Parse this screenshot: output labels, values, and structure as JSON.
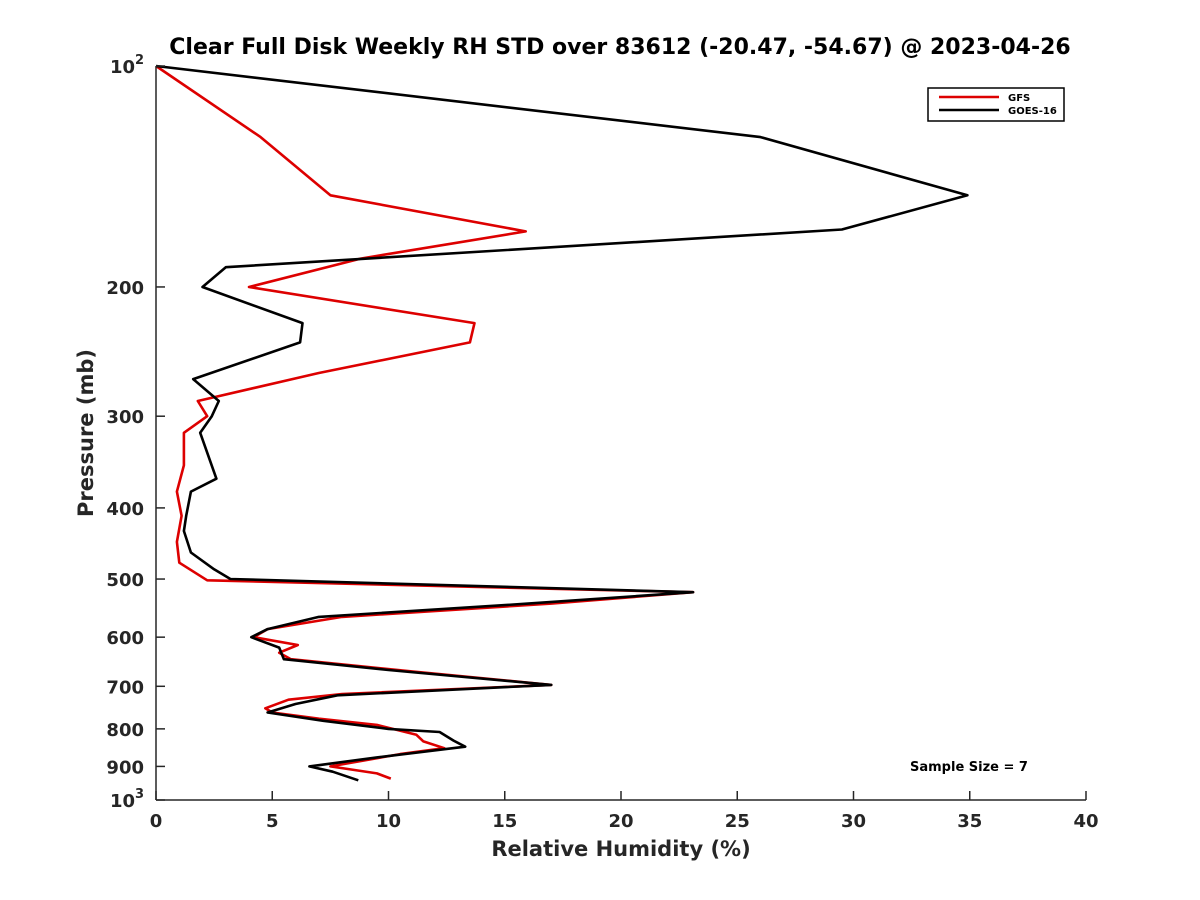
{
  "chart_data": {
    "type": "line",
    "title": "Clear Full Disk Weekly RH STD over 83612 (-20.47, -54.67) @ 2023-04-26",
    "xlabel": "Relative Humidity (%)",
    "ylabel": "Pressure (mb)",
    "xlim": [
      0,
      40
    ],
    "ylim": [
      100,
      1000
    ],
    "yscale": "log",
    "y_reversed": true,
    "xticks": [
      0,
      5,
      10,
      15,
      20,
      25,
      30,
      35,
      40
    ],
    "yticks": [
      {
        "value": 100,
        "label": "10",
        "sup": "2"
      },
      {
        "value": 200,
        "label": "200",
        "sup": ""
      },
      {
        "value": 300,
        "label": "300",
        "sup": ""
      },
      {
        "value": 400,
        "label": "400",
        "sup": ""
      },
      {
        "value": 500,
        "label": "500",
        "sup": ""
      },
      {
        "value": 600,
        "label": "600",
        "sup": ""
      },
      {
        "value": 700,
        "label": "700",
        "sup": ""
      },
      {
        "value": 800,
        "label": "800",
        "sup": ""
      },
      {
        "value": 900,
        "label": "900",
        "sup": ""
      },
      {
        "value": 1000,
        "label": "10",
        "sup": "3"
      }
    ],
    "grid": false,
    "legend_position": "top-right",
    "annotation": "Sample Size = 7",
    "series": [
      {
        "name": "GFS",
        "color": "#dd0000",
        "points": [
          {
            "x": 0.0,
            "y": 100
          },
          {
            "x": 4.5,
            "y": 125
          },
          {
            "x": 7.5,
            "y": 150
          },
          {
            "x": 15.9,
            "y": 168
          },
          {
            "x": 8.8,
            "y": 183
          },
          {
            "x": 4.0,
            "y": 200
          },
          {
            "x": 13.7,
            "y": 224
          },
          {
            "x": 13.5,
            "y": 238
          },
          {
            "x": 7.0,
            "y": 262
          },
          {
            "x": 1.8,
            "y": 286
          },
          {
            "x": 2.2,
            "y": 300
          },
          {
            "x": 1.2,
            "y": 316
          },
          {
            "x": 1.2,
            "y": 350
          },
          {
            "x": 0.9,
            "y": 380
          },
          {
            "x": 1.1,
            "y": 410
          },
          {
            "x": 0.9,
            "y": 445
          },
          {
            "x": 1.0,
            "y": 475
          },
          {
            "x": 2.2,
            "y": 502
          },
          {
            "x": 23.1,
            "y": 521
          },
          {
            "x": 17.0,
            "y": 540
          },
          {
            "x": 8.0,
            "y": 563
          },
          {
            "x": 4.8,
            "y": 585
          },
          {
            "x": 4.2,
            "y": 600
          },
          {
            "x": 6.1,
            "y": 615
          },
          {
            "x": 5.3,
            "y": 630
          },
          {
            "x": 5.8,
            "y": 643
          },
          {
            "x": 11.0,
            "y": 668
          },
          {
            "x": 17.0,
            "y": 697
          },
          {
            "x": 8.0,
            "y": 717
          },
          {
            "x": 5.7,
            "y": 730
          },
          {
            "x": 4.7,
            "y": 750
          },
          {
            "x": 5.0,
            "y": 760
          },
          {
            "x": 7.0,
            "y": 775
          },
          {
            "x": 9.5,
            "y": 790
          },
          {
            "x": 11.2,
            "y": 815
          },
          {
            "x": 11.5,
            "y": 832
          },
          {
            "x": 12.4,
            "y": 850
          },
          {
            "x": 10.5,
            "y": 866
          },
          {
            "x": 7.5,
            "y": 900
          },
          {
            "x": 9.5,
            "y": 920
          },
          {
            "x": 10.1,
            "y": 935
          }
        ]
      },
      {
        "name": "GOES-16",
        "color": "#000000",
        "points": [
          {
            "x": 0.0,
            "y": 100
          },
          {
            "x": 26.0,
            "y": 125
          },
          {
            "x": 34.9,
            "y": 150
          },
          {
            "x": 29.5,
            "y": 167
          },
          {
            "x": 3.0,
            "y": 188
          },
          {
            "x": 2.0,
            "y": 200
          },
          {
            "x": 6.3,
            "y": 224
          },
          {
            "x": 6.2,
            "y": 238
          },
          {
            "x": 1.6,
            "y": 267
          },
          {
            "x": 2.7,
            "y": 286
          },
          {
            "x": 2.4,
            "y": 300
          },
          {
            "x": 1.9,
            "y": 316
          },
          {
            "x": 2.6,
            "y": 365
          },
          {
            "x": 1.5,
            "y": 380
          },
          {
            "x": 1.3,
            "y": 410
          },
          {
            "x": 1.2,
            "y": 430
          },
          {
            "x": 1.5,
            "y": 460
          },
          {
            "x": 2.5,
            "y": 485
          },
          {
            "x": 3.2,
            "y": 500
          },
          {
            "x": 23.1,
            "y": 521
          },
          {
            "x": 16.0,
            "y": 540
          },
          {
            "x": 7.0,
            "y": 563
          },
          {
            "x": 4.8,
            "y": 585
          },
          {
            "x": 4.1,
            "y": 600
          },
          {
            "x": 5.3,
            "y": 620
          },
          {
            "x": 5.5,
            "y": 643
          },
          {
            "x": 10.0,
            "y": 665
          },
          {
            "x": 17.0,
            "y": 697
          },
          {
            "x": 7.8,
            "y": 720
          },
          {
            "x": 6.0,
            "y": 740
          },
          {
            "x": 4.8,
            "y": 760
          },
          {
            "x": 7.2,
            "y": 780
          },
          {
            "x": 10.0,
            "y": 800
          },
          {
            "x": 12.2,
            "y": 808
          },
          {
            "x": 12.8,
            "y": 830
          },
          {
            "x": 13.3,
            "y": 846
          },
          {
            "x": 9.5,
            "y": 875
          },
          {
            "x": 6.6,
            "y": 900
          },
          {
            "x": 7.6,
            "y": 915
          },
          {
            "x": 8.7,
            "y": 940
          }
        ]
      }
    ]
  }
}
